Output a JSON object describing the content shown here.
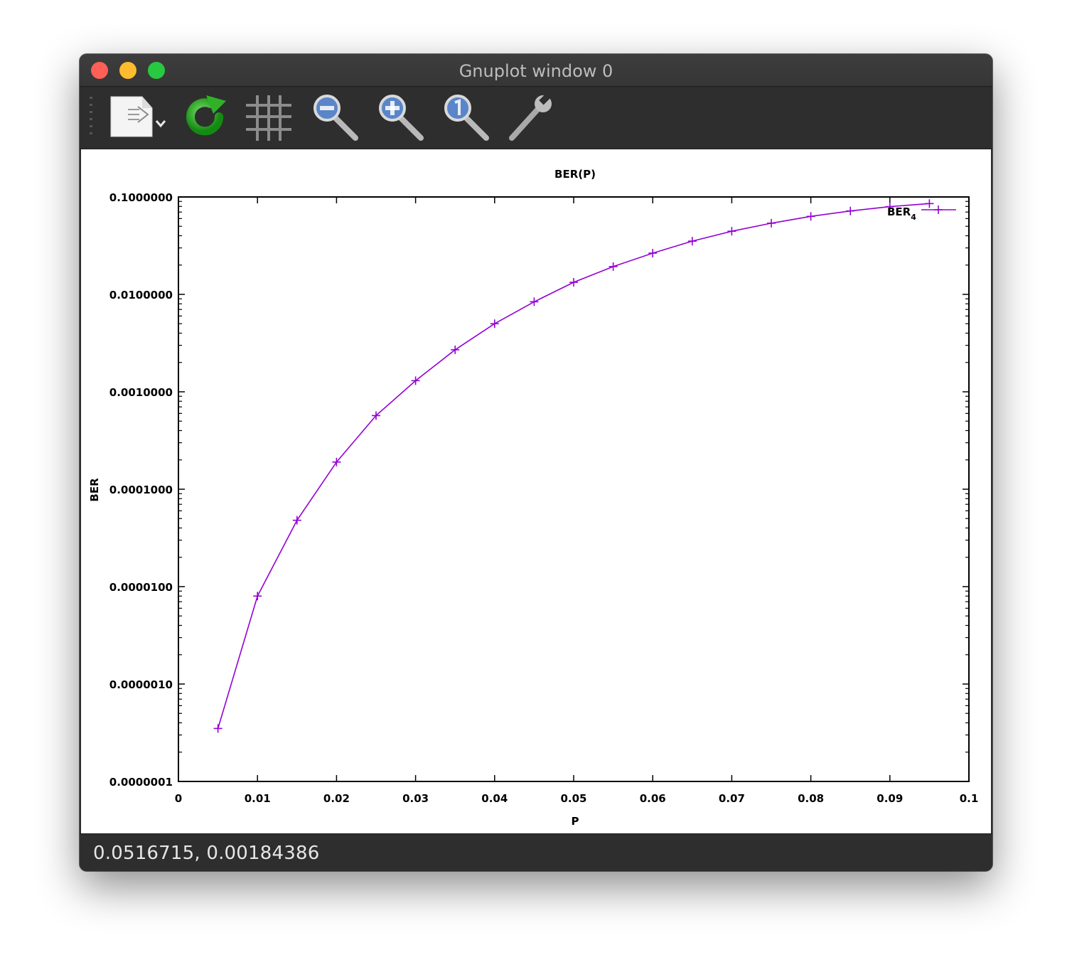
{
  "window": {
    "title": "Gnuplot window 0"
  },
  "toolbar": {
    "items": [
      {
        "name": "export-icon"
      },
      {
        "name": "replot-icon"
      },
      {
        "name": "grid-icon"
      },
      {
        "name": "zoom-out-icon"
      },
      {
        "name": "zoom-in-icon"
      },
      {
        "name": "zoom-reset-icon"
      },
      {
        "name": "settings-wrench-icon"
      }
    ]
  },
  "status": {
    "coords": "0.0516715,  0.00184386"
  },
  "colors": {
    "series": "#9400d3",
    "titlebar": "#3a3a3a",
    "toolbar": "#2e2e2e"
  },
  "chart_data": {
    "type": "line",
    "title": "BER(P)",
    "xlabel": "P",
    "ylabel": "BER",
    "xlim": [
      0,
      0.1
    ],
    "ylim": [
      1e-07,
      0.1
    ],
    "yscale": "log",
    "x_ticks": [
      "0",
      "0.01",
      "0.02",
      "0.03",
      "0.04",
      "0.05",
      "0.06",
      "0.07",
      "0.08",
      "0.09",
      "0.1"
    ],
    "y_ticks": [
      "0.0000001",
      "0.0000010",
      "0.0000100",
      "0.0001000",
      "0.0010000",
      "0.0100000",
      "0.1000000"
    ],
    "grid": false,
    "legend_position": "top-right",
    "series": [
      {
        "name": "BER",
        "name_subscript": "4",
        "marker": "plus",
        "x": [
          0.005,
          0.01,
          0.015,
          0.02,
          0.025,
          0.03,
          0.035,
          0.04,
          0.045,
          0.05,
          0.055,
          0.06,
          0.065,
          0.07,
          0.075,
          0.08,
          0.085,
          0.09,
          0.095
        ],
        "y": [
          3.5e-07,
          8e-06,
          4.8e-05,
          0.00019,
          0.00057,
          0.0013,
          0.0027,
          0.005,
          0.0084,
          0.0133,
          0.0193,
          0.0265,
          0.0352,
          0.0445,
          0.0538,
          0.0632,
          0.0718,
          0.0795,
          0.0855
        ]
      }
    ]
  }
}
